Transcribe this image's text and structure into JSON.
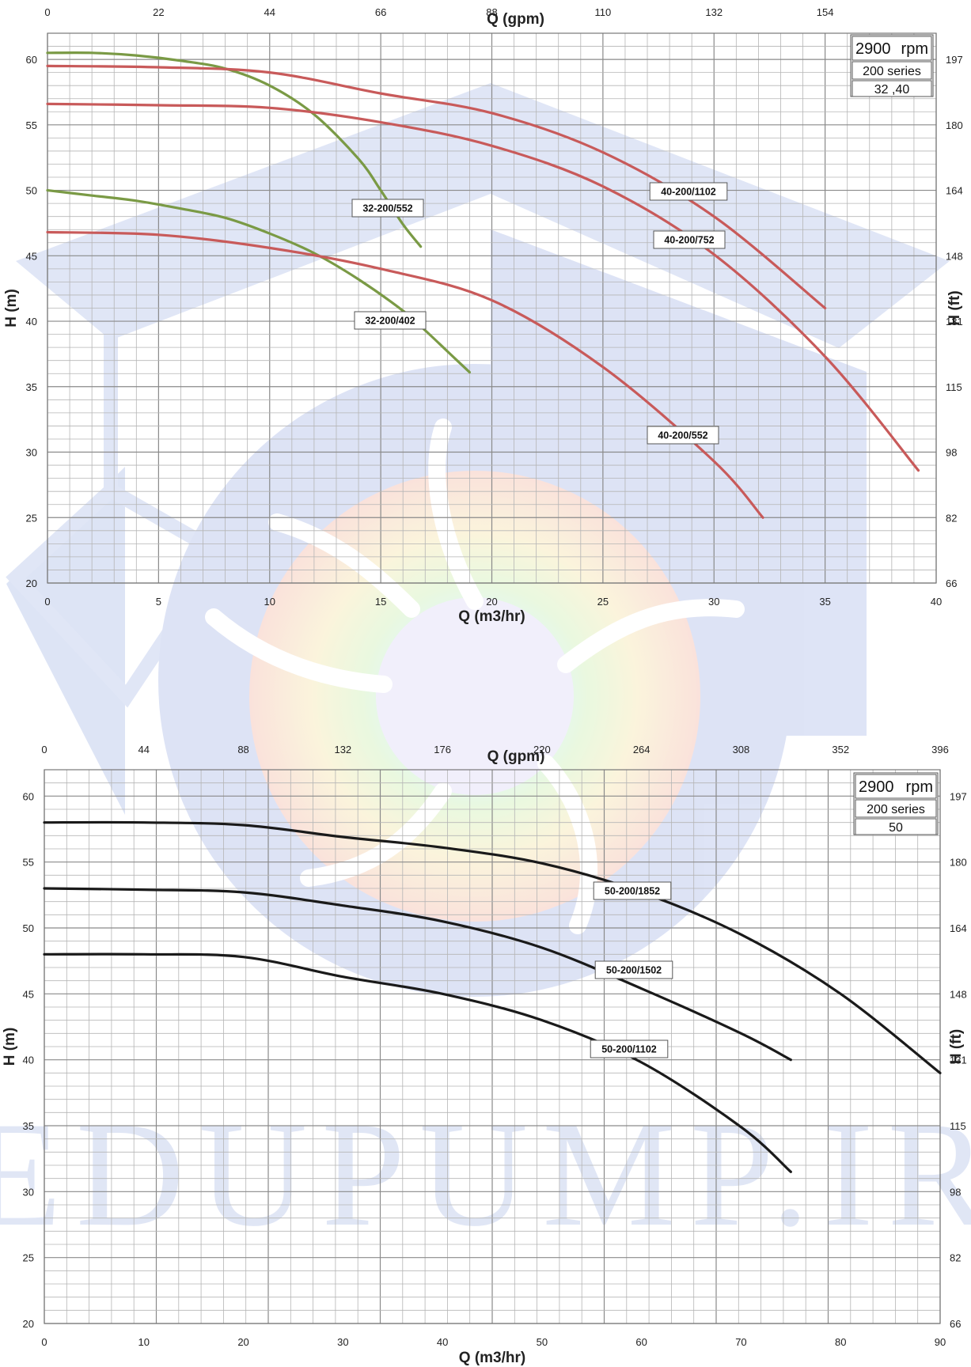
{
  "chart_data": [
    {
      "type": "line",
      "info_box": {
        "speed": "2900",
        "speed_unit": "rpm",
        "series_name": "200 series",
        "sizes": "32 ,40"
      },
      "xlabel": "Q (m3/hr)",
      "x2label": "Q (gpm)",
      "ylabel": "H (m)",
      "y2label": "H (ft)",
      "xlim": [
        0,
        40
      ],
      "ylim": [
        20,
        62
      ],
      "x_ticks": [
        "0",
        "5",
        "10",
        "15",
        "20",
        "25",
        "30",
        "35",
        "40"
      ],
      "y_ticks": [
        "20",
        "25",
        "30",
        "35",
        "40",
        "45",
        "50",
        "55",
        "60"
      ],
      "x2_ticks": [
        "0",
        "22",
        "44",
        "66",
        "88",
        "110",
        "132",
        "154"
      ],
      "y2_ticks": [
        "66",
        "82",
        "98",
        "115",
        "131",
        "148",
        "164",
        "180",
        "197"
      ],
      "grid": true,
      "series": [
        {
          "name": "32-200/552",
          "color": "#7a9a45",
          "x": [
            0,
            2,
            4,
            6,
            8,
            10,
            12,
            14,
            15,
            16,
            16.8
          ],
          "y": [
            60.5,
            60.5,
            60.3,
            59.9,
            59.3,
            58.0,
            55.8,
            52.4,
            50.0,
            47.4,
            45.7
          ]
        },
        {
          "name": "32-200/402",
          "color": "#7a9a45",
          "x": [
            0,
            2,
            4,
            6,
            8,
            10,
            12,
            14,
            16,
            17,
            18,
            19
          ],
          "y": [
            50.0,
            49.6,
            49.2,
            48.6,
            47.9,
            46.7,
            45.2,
            43.2,
            40.8,
            39.3,
            37.7,
            36.1
          ]
        },
        {
          "name": "40-200/1102",
          "color": "#c85a5a",
          "x": [
            0,
            5,
            10,
            15,
            20,
            25,
            30,
            35
          ],
          "y": [
            59.5,
            59.4,
            59.0,
            57.4,
            55.9,
            52.9,
            48.0,
            41.0
          ]
        },
        {
          "name": "40-200/752",
          "color": "#c85a5a",
          "x": [
            0,
            5,
            10,
            15,
            20,
            25,
            30,
            35,
            39.2
          ],
          "y": [
            56.6,
            56.5,
            56.3,
            55.2,
            53.4,
            50.3,
            45.1,
            37.3,
            28.6
          ]
        },
        {
          "name": "40-200/552",
          "color": "#c85a5a",
          "x": [
            0,
            5,
            10,
            15,
            20,
            25,
            30,
            32.2
          ],
          "y": [
            46.8,
            46.6,
            45.6,
            44.0,
            41.6,
            36.5,
            29.3,
            25.0
          ]
        }
      ],
      "curve_labels": [
        "32-200/552",
        "32-200/402",
        "40-200/1102",
        "40-200/752",
        "40-200/552"
      ]
    },
    {
      "type": "line",
      "info_box": {
        "speed": "2900",
        "speed_unit": "rpm",
        "series_name": "200 series",
        "sizes": "50"
      },
      "xlabel": "Q (m3/hr)",
      "x2label": "Q (gpm)",
      "ylabel": "H (m)",
      "y2label": "H (ft)",
      "xlim": [
        0,
        90
      ],
      "ylim": [
        20,
        62
      ],
      "x_ticks": [
        "0",
        "10",
        "20",
        "30",
        "40",
        "50",
        "60",
        "70",
        "80",
        "90"
      ],
      "y_ticks": [
        "20",
        "25",
        "30",
        "35",
        "40",
        "45",
        "50",
        "55",
        "60"
      ],
      "x2_ticks": [
        "0",
        "44",
        "88",
        "132",
        "176",
        "220",
        "264",
        "308",
        "352",
        "396"
      ],
      "y2_ticks": [
        "66",
        "82",
        "98",
        "115",
        "131",
        "148",
        "164",
        "180",
        "197"
      ],
      "grid": true,
      "series": [
        {
          "name": "50-200/1852",
          "color": "#1a1a1a",
          "x": [
            0,
            10,
            20,
            30,
            40,
            50,
            60,
            70,
            80,
            90
          ],
          "y": [
            58.0,
            58.0,
            57.8,
            56.9,
            56.1,
            54.9,
            52.7,
            49.5,
            45.0,
            39.0
          ]
        },
        {
          "name": "50-200/1502",
          "color": "#1a1a1a",
          "x": [
            0,
            10,
            20,
            30,
            40,
            50,
            60,
            70,
            75
          ],
          "y": [
            53.0,
            52.9,
            52.7,
            51.7,
            50.5,
            48.5,
            45.4,
            42.0,
            40.0
          ]
        },
        {
          "name": "50-200/1102",
          "color": "#1a1a1a",
          "x": [
            0,
            10,
            20,
            30,
            40,
            50,
            60,
            70,
            75
          ],
          "y": [
            48.0,
            48.0,
            47.8,
            46.3,
            45.0,
            43.0,
            39.8,
            34.9,
            31.5
          ]
        }
      ],
      "curve_labels": [
        "50-200/1852",
        "50-200/1502",
        "50-200/1102"
      ]
    }
  ],
  "watermark": {
    "text": "EDUPUMP.IR",
    "colors": {
      "blue": "#b9c6ea",
      "orange": "#f3b8a0",
      "green": "#bfe6b4",
      "cyan": "#bde9f3"
    }
  }
}
